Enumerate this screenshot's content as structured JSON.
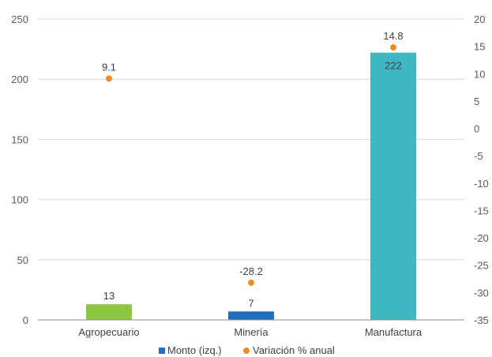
{
  "chart_data": {
    "type": "bar",
    "categories": [
      "Agropecuario",
      "Minería",
      "Manufactura"
    ],
    "series": [
      {
        "name": "Monto (izq.)",
        "kind": "bar",
        "axis": "left",
        "values": [
          13,
          7,
          222
        ],
        "colors": [
          "#8DC63F",
          "#1F6FBF",
          "#3FB7C0"
        ]
      },
      {
        "name": "Variación % anual",
        "kind": "scatter",
        "axis": "right",
        "values": [
          9.1,
          -28.2,
          14.8
        ],
        "color": "#F08C28"
      }
    ],
    "data_labels": {
      "bars": [
        "13",
        "7",
        "222"
      ],
      "points": [
        "9.1",
        "-28.2",
        "14.8"
      ]
    },
    "ylim_left": [
      0,
      250
    ],
    "yticks_left": [
      "0",
      "50",
      "100",
      "150",
      "200",
      "250"
    ],
    "ylim_right": [
      -35,
      20
    ],
    "yticks_right": [
      "-35",
      "-30",
      "-25",
      "-20",
      "-15",
      "-10",
      "-5",
      "0",
      "5",
      "10",
      "15",
      "20"
    ],
    "grid": true,
    "legend_position": "bottom"
  }
}
